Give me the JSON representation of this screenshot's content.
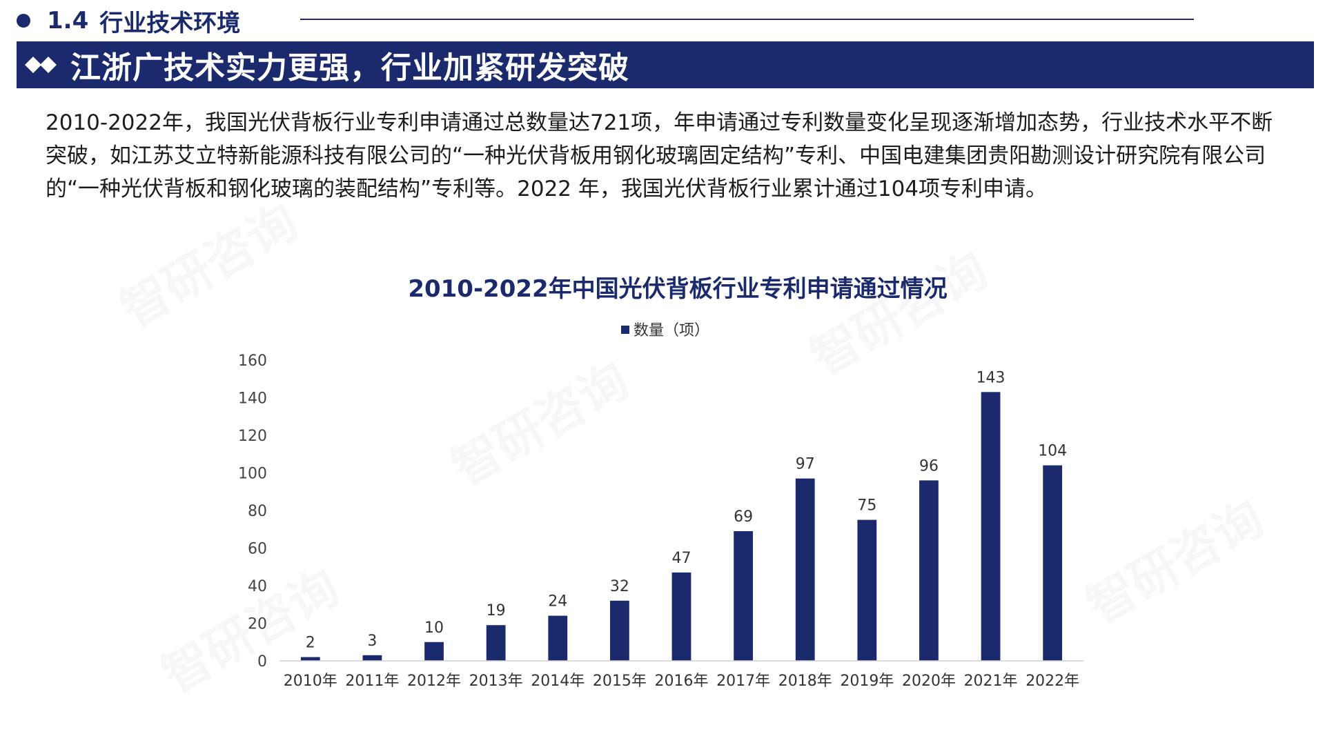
{
  "section": {
    "number": "1.4",
    "title": "行业技术环境"
  },
  "banner": {
    "title": "江浙广技术实力更强，行业加紧研发突破"
  },
  "body": {
    "paragraph": "2010-2022年，我国光伏背板行业专利申请通过总数量达721项，年申请通过专利数量变化呈现逐渐增加态势，行业技术水平不断突破，如江苏艾立特新能源科技有限公司的“一种光伏背板用钢化玻璃固定结构”专利、中国电建集团贵阳勘测设计研究院有限公司的“一种光伏背板和钢化玻璃的装配结构”专利等。2022 年，我国光伏背板行业累计通过104项专利申请。"
  },
  "colors": {
    "brand": "#1a2a6c",
    "bar": "#1a2a6c",
    "axis": "#d0d0d0"
  },
  "watermark": "智研咨询",
  "chart_data": {
    "type": "bar",
    "title": "2010-2022年中国光伏背板行业专利申请通过情况",
    "legend": "数量（项）",
    "legend_position": "top",
    "categories": [
      "2010年",
      "2011年",
      "2012年",
      "2013年",
      "2014年",
      "2015年",
      "2016年",
      "2017年",
      "2018年",
      "2019年",
      "2020年",
      "2021年",
      "2022年"
    ],
    "series": [
      {
        "name": "数量（项）",
        "values": [
          2,
          3,
          10,
          19,
          24,
          32,
          47,
          69,
          97,
          75,
          96,
          143,
          104
        ]
      }
    ],
    "ylim": [
      0,
      160
    ],
    "yticks": [
      0,
      20,
      40,
      60,
      80,
      100,
      120,
      140,
      160
    ],
    "grid": false
  }
}
